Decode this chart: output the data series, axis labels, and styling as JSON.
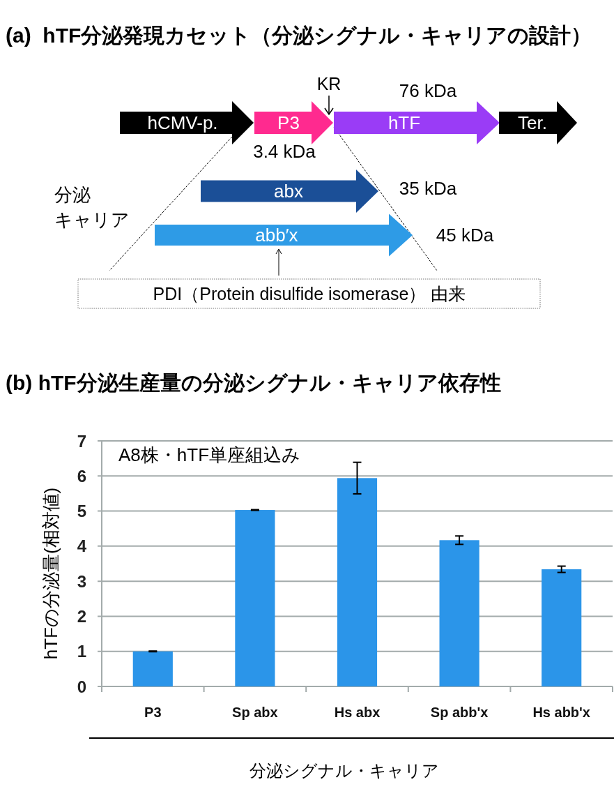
{
  "chart_data": [
    {
      "type": "other",
      "title": "(a)  hTF分泌発現カセット（分泌シグナル・キャリアの設計）",
      "annotations": [
        "hCMV-p.",
        "P3",
        "hTF",
        "Ter.",
        "KR",
        "76 kDa",
        "3.4 kDa",
        "abx",
        "35 kDa",
        "abb′x",
        "45 kDa",
        "分泌キャリア",
        "PDI（Protein disulfide isomerase） 由来"
      ]
    },
    {
      "type": "bar",
      "title": "(b) hTF分泌生産量の分泌シグナル・キャリア依存性",
      "categories": [
        "P3",
        "Sp abx",
        "Hs abx",
        "Sp abb'x",
        "Hs abb'x"
      ],
      "values": [
        1.0,
        5.03,
        5.94,
        4.17,
        3.34
      ],
      "errors": [
        0.01,
        0.01,
        0.45,
        0.12,
        0.09
      ],
      "color": "#2b95e9",
      "ylim": [
        0,
        7
      ],
      "yticks": [
        0,
        1,
        2,
        3,
        4,
        5,
        6,
        7
      ],
      "grid": "y",
      "ylabel": "hTFの分泌量(相対値)",
      "xlabel": "分泌シグナル・キャリア",
      "annotations": [
        "A8株・hTF単座組込み"
      ]
    }
  ]
}
